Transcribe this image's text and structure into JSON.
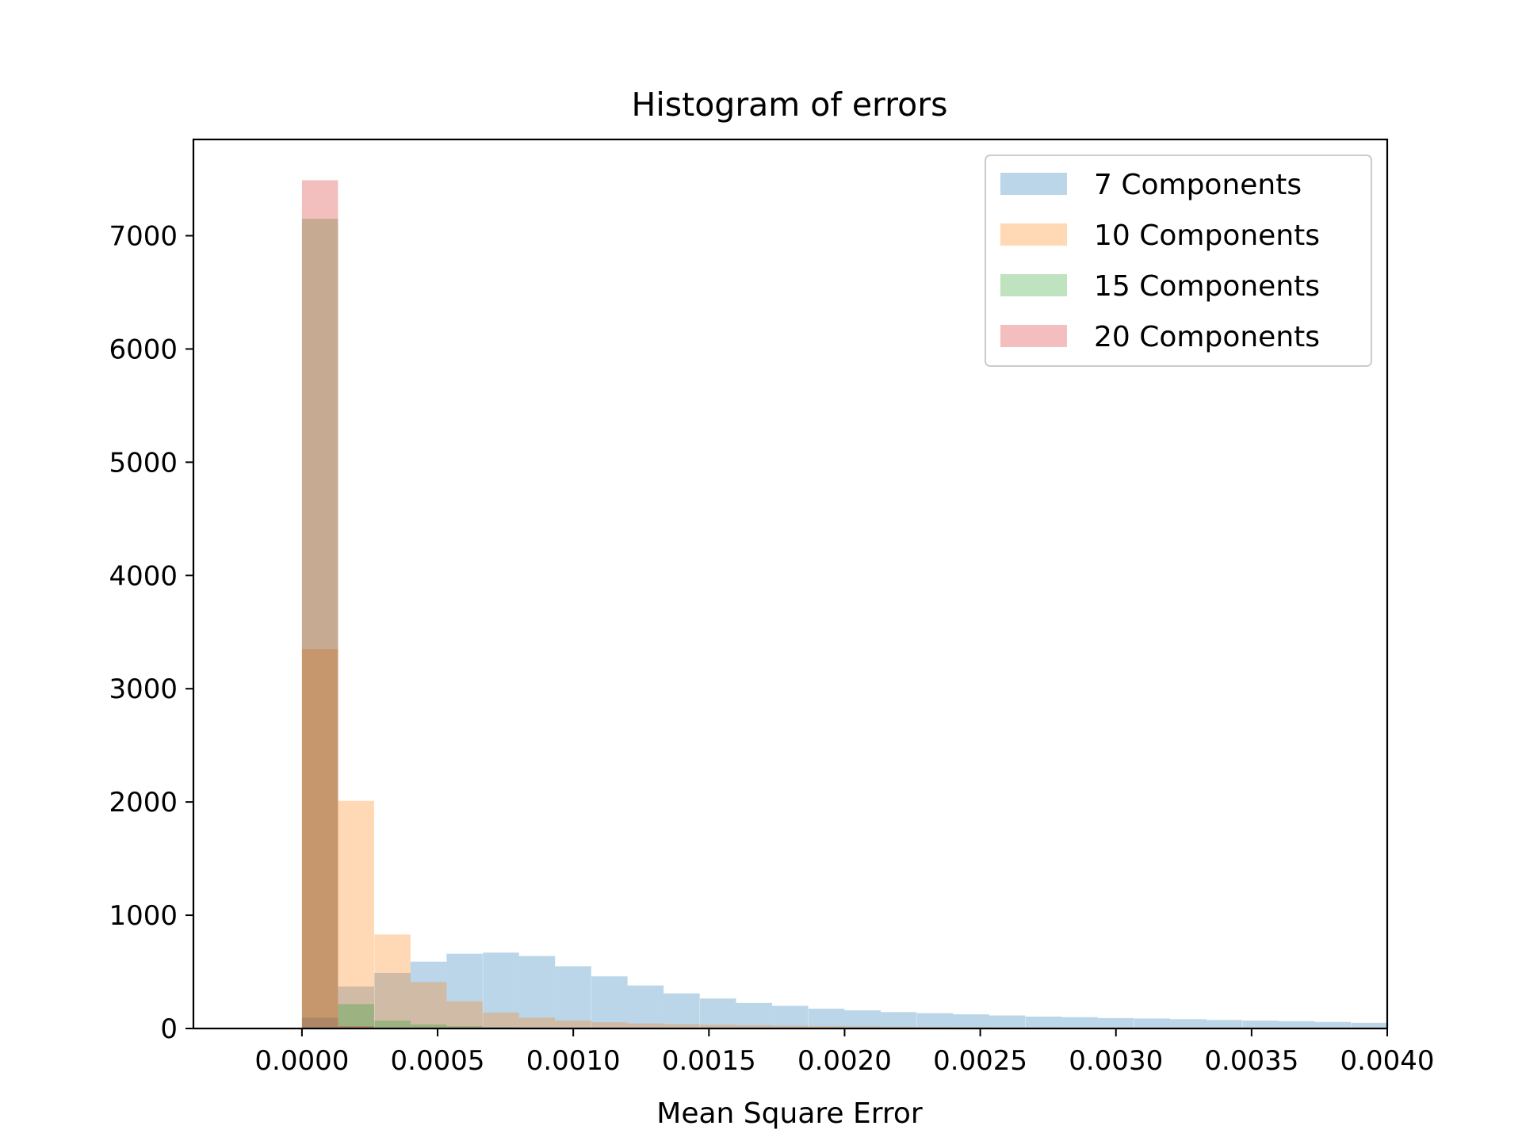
{
  "chart_data": {
    "type": "bar",
    "subtype": "overlapping-histogram",
    "title": "Histogram of errors",
    "xlabel": "Mean Square Error",
    "ylabel": "",
    "xlim": [
      -0.0004,
      0.004
    ],
    "ylim": [
      0,
      7850
    ],
    "bin_width": 0.000133,
    "bin_starts": [
      0.0,
      0.000133,
      0.000267,
      0.0004,
      0.000533,
      0.000667,
      0.0008,
      0.000933,
      0.001067,
      0.0012,
      0.001333,
      0.001467,
      0.0016,
      0.001733,
      0.001867,
      0.002,
      0.002133,
      0.002267,
      0.0024,
      0.002533,
      0.002667,
      0.0028,
      0.002933,
      0.003067,
      0.0032,
      0.003333,
      0.003467,
      0.0036,
      0.003733,
      0.003867
    ],
    "xticks": [
      "0.0000",
      "0.0005",
      "0.0010",
      "0.0015",
      "0.0020",
      "0.0025",
      "0.0030",
      "0.0035",
      "0.0040"
    ],
    "xtick_values": [
      0.0,
      0.0005,
      0.001,
      0.0015,
      0.002,
      0.0025,
      0.003,
      0.0035,
      0.004
    ],
    "yticks": [
      "0",
      "1000",
      "2000",
      "3000",
      "4000",
      "5000",
      "6000",
      "7000"
    ],
    "ytick_values": [
      0,
      1000,
      2000,
      3000,
      4000,
      5000,
      6000,
      7000
    ],
    "legend_position": "top-right",
    "grid": false,
    "opacity": 0.3,
    "series": [
      {
        "name": "7 Components",
        "color": "#1f77b4",
        "values": [
          95,
          370,
          490,
          590,
          660,
          670,
          640,
          550,
          460,
          380,
          310,
          265,
          225,
          200,
          175,
          160,
          145,
          135,
          125,
          115,
          105,
          100,
          92,
          88,
          82,
          75,
          70,
          65,
          58,
          50
        ]
      },
      {
        "name": "10 Components",
        "color": "#ff7f0e",
        "values": [
          3350,
          2010,
          830,
          410,
          240,
          140,
          95,
          70,
          55,
          45,
          38,
          32,
          28,
          24,
          20,
          18,
          15,
          13,
          11,
          10,
          8,
          7,
          6,
          5,
          5,
          4,
          4,
          3,
          3,
          2
        ]
      },
      {
        "name": "15 Components",
        "color": "#2ca02c",
        "values": [
          7150,
          215,
          70,
          35,
          20,
          12,
          8,
          6,
          5,
          4,
          3,
          3,
          2,
          2,
          2,
          1,
          1,
          1,
          1,
          1,
          1,
          1,
          0,
          0,
          0,
          0,
          0,
          0,
          0,
          0
        ]
      },
      {
        "name": "20 Components",
        "color": "#d62728",
        "values": [
          7490,
          20,
          6,
          3,
          2,
          1,
          1,
          0,
          0,
          0,
          0,
          0,
          0,
          0,
          0,
          0,
          0,
          0,
          0,
          0,
          0,
          0,
          0,
          0,
          0,
          0,
          0,
          0,
          0,
          0
        ]
      }
    ]
  }
}
